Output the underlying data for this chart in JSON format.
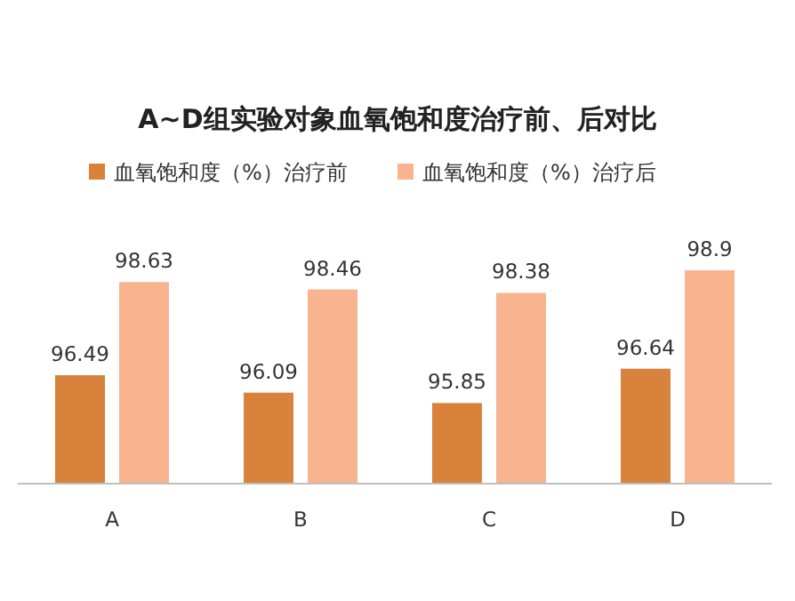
{
  "chart_data": {
    "type": "bar",
    "title": "A~D组实验对象血氧饱和度治疗前、后对比",
    "categories": [
      "A",
      "B",
      "C",
      "D"
    ],
    "series": [
      {
        "name": "血氧饱和度（%）治疗前",
        "color": "#d9823b",
        "values": [
          96.49,
          96.09,
          95.85,
          96.64
        ]
      },
      {
        "name": "血氧饱和度（%）治疗后",
        "color": "#f7b48e",
        "values": [
          98.63,
          98.46,
          98.38,
          98.9
        ]
      }
    ],
    "ylim": [
      94,
      98.9
    ],
    "tick_labels": "x",
    "data_labels": true,
    "legend": "top"
  }
}
